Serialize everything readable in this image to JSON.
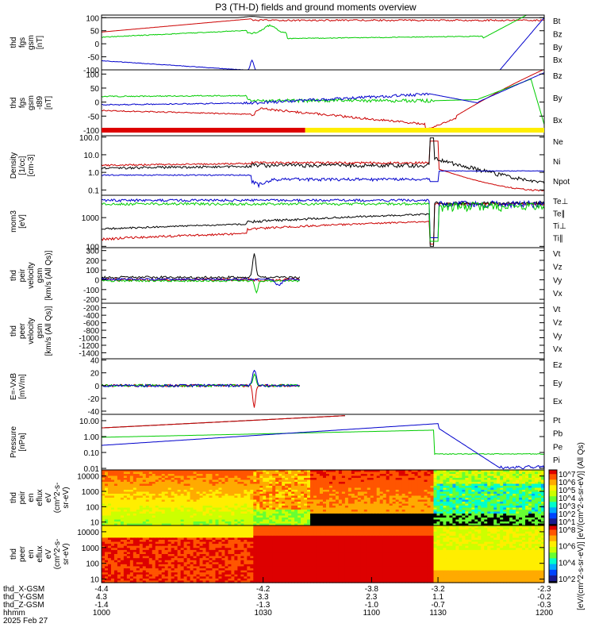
{
  "title": "P3 (TH-D) fields and ground moments overview",
  "chart_data": [
    {
      "type": "line",
      "ylabel_lines": [
        "thd",
        "fgs",
        "gsm",
        "[nT]"
      ],
      "yticks": [
        100,
        50,
        0,
        -50,
        -100
      ],
      "ylim": [
        -100,
        110
      ],
      "legend": [
        {
          "name": "Bt",
          "color": "#000000"
        },
        {
          "name": "Bz",
          "color": "#cc0000"
        },
        {
          "name": "By",
          "color": "#00cc00"
        },
        {
          "name": "Bx",
          "color": "#0000cc"
        }
      ]
    },
    {
      "type": "line",
      "ylabel_lines": [
        "thd",
        "fgs",
        "gsm",
        "-t89",
        "[nT]"
      ],
      "yticks": [
        100,
        50,
        0,
        -50,
        -100
      ],
      "ylim": [
        -120,
        115
      ],
      "legend": [
        {
          "name": "Bz",
          "color": "#cc0000"
        },
        {
          "name": "By",
          "color": "#00cc00"
        },
        {
          "name": "Bx",
          "color": "#0000cc"
        }
      ]
    },
    {
      "type": "line",
      "scale": "log",
      "ylabel_lines": [
        "Density",
        "[1/cc]",
        "[cm-3]"
      ],
      "yticks": [
        "100.0",
        "10.0",
        "1.0",
        "0.1"
      ],
      "ylim": [
        0.05,
        120
      ],
      "legend": [
        {
          "name": "Ne",
          "color": "#cc0000"
        },
        {
          "name": "Ni",
          "color": "#000000"
        },
        {
          "name": "Npot",
          "color": "#0000cc"
        }
      ]
    },
    {
      "type": "line",
      "scale": "log",
      "ylabel_lines": [
        "mom3",
        "[eV]"
      ],
      "yticks": [
        "1000",
        "100"
      ],
      "ylim": [
        90,
        6000
      ],
      "legend": [
        {
          "name": "Te⊥",
          "color": "#cc0000"
        },
        {
          "name": "Te∥",
          "color": "#000000"
        },
        {
          "name": "Ti⊥",
          "color": "#0000cc"
        },
        {
          "name": "Ti∥",
          "color": "#00cc00"
        }
      ]
    },
    {
      "type": "line",
      "ylabel_lines": [
        "thd",
        "peir",
        "velocity",
        "gsm",
        "[km/s (All Qs)]"
      ],
      "yticks": [
        300,
        200,
        100,
        0,
        -100,
        -200
      ],
      "ylim": [
        -240,
        330
      ],
      "legend": [
        {
          "name": "Vt",
          "color": "#000000"
        },
        {
          "name": "Vz",
          "color": "#cc0000"
        },
        {
          "name": "Vy",
          "color": "#00cc00"
        },
        {
          "name": "Vx",
          "color": "#0000cc"
        }
      ]
    },
    {
      "type": "line",
      "ylabel_lines": [
        "thd",
        "peer",
        "velocity",
        "gsm",
        "[km/s (All Qs)]"
      ],
      "yticks": [
        -200,
        -400,
        -600,
        -800,
        -1000,
        -1200,
        -1400
      ],
      "ylim": [
        -1560,
        -80
      ],
      "legend": [
        {
          "name": "Vt",
          "color": "#000000"
        },
        {
          "name": "Vz",
          "color": "#cc0000"
        },
        {
          "name": "Vy",
          "color": "#00cc00"
        },
        {
          "name": "Vx",
          "color": "#0000cc"
        }
      ]
    },
    {
      "type": "line",
      "ylabel_lines": [
        "E=-VxB",
        "[mV/m]"
      ],
      "yticks": [
        40,
        20,
        0,
        -20,
        -40
      ],
      "ylim": [
        -45,
        42
      ],
      "legend": [
        {
          "name": "Ez",
          "color": "#cc0000"
        },
        {
          "name": "Ey",
          "color": "#00cc00"
        },
        {
          "name": "Ex",
          "color": "#0000cc"
        }
      ]
    },
    {
      "type": "line",
      "scale": "log",
      "ylabel_lines": [
        "Pressure",
        "[nPa]"
      ],
      "yticks": [
        "10.00",
        "1.00",
        "0.10",
        "0.01"
      ],
      "ylim": [
        0.008,
        25
      ],
      "legend": [
        {
          "name": "Pt",
          "color": "#000000"
        },
        {
          "name": "Pb",
          "color": "#cc0000"
        },
        {
          "name": "Pe",
          "color": "#00cc00"
        },
        {
          "name": "Pi",
          "color": "#0000cc"
        }
      ]
    },
    {
      "type": "heatmap",
      "scale": "log",
      "ylabel_lines": [
        "thd",
        "peir",
        "en",
        "eflux",
        "eV",
        "(cm^2-s-",
        "sr-eV)"
      ],
      "yticks": [
        "10000",
        "1000",
        "100",
        "10"
      ],
      "ylim": [
        6,
        25000
      ]
    },
    {
      "type": "heatmap",
      "scale": "log",
      "ylabel_lines": [
        "thd",
        "peer",
        "en",
        "eflux",
        "eV",
        "(cm^2-s-",
        "sr-eV)"
      ],
      "yticks": [
        "10000",
        "1000",
        "100",
        "10"
      ],
      "ylim": [
        6,
        25000
      ]
    }
  ],
  "colorbar": {
    "label": "[eV/(cm^2-s-sr-eV)] [eV/(cm^2-s-sr-eV)] (All Qs)",
    "ticks_top": [
      "10^7",
      "10^6",
      "10^5",
      "10^4",
      "10^3",
      "10^2",
      "10^1"
    ],
    "ticks_bottom": [
      "10^8",
      "10^6",
      "10^4",
      "10^2"
    ]
  },
  "x_axis": {
    "row_labels": [
      "thd_X-GSM",
      "thd_Y-GSM",
      "thd_Z-GSM",
      "hhmm",
      "2025 Feb 27"
    ],
    "ticks": [
      {
        "x": "-4.4",
        "y": "4.3",
        "z": "-1.4",
        "hhmm": "1000"
      },
      {
        "x": "-4.2",
        "y": "3.3",
        "z": "-1.3",
        "hhmm": "1030"
      },
      {
        "x": "-3.8",
        "y": "2.3",
        "z": "-1.0",
        "hhmm": "1100"
      },
      {
        "x": "-3.2",
        "y": "1.1",
        "z": "-0.7",
        "hhmm": "1130"
      },
      {
        "x": "-2.3",
        "y": "-0.2",
        "z": "-0.3",
        "hhmm": "1200"
      }
    ]
  }
}
